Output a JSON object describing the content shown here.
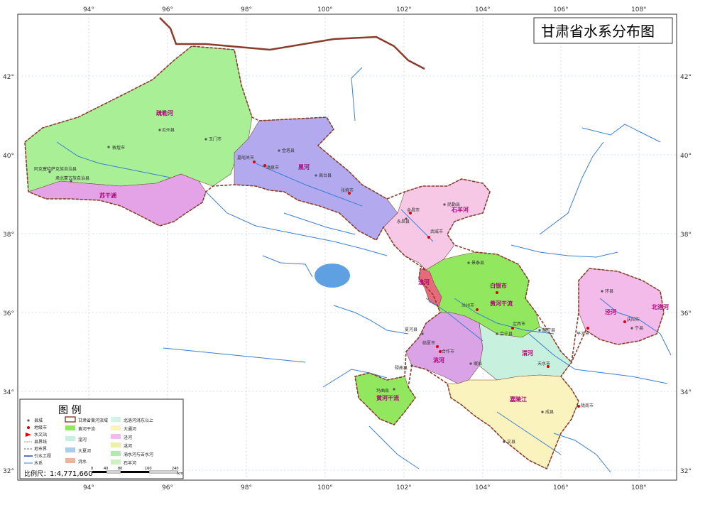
{
  "title": "甘肃省水系分布图",
  "axes": {
    "longitudes": [
      "94°",
      "96°",
      "98°",
      "100°",
      "102°",
      "104°",
      "106°",
      "108°"
    ],
    "latitudes": [
      "42°",
      "40°",
      "38°",
      "36°",
      "34°",
      "32°"
    ]
  },
  "basins": [
    "疏勒河",
    "黑河",
    "石羊河",
    "苏干湖",
    "黄河干流",
    "白银市",
    "渭河",
    "泾河",
    "嘉陵江",
    "洮河",
    "湟河",
    "北洛河",
    "黄河干流"
  ],
  "cities": [
    "嘉峪关市",
    "酒泉市",
    "张掖市",
    "金昌市",
    "武威市",
    "兰州市",
    "白银市",
    "定西市",
    "天水市",
    "平凉市",
    "庆阳市",
    "陇南市",
    "临夏市",
    "合作市",
    "敦煌市",
    "玉门市",
    "瓜州县",
    "金塔县",
    "高台县",
    "民勤县",
    "永昌县",
    "景泰县",
    "会宁县",
    "静宁县",
    "环县",
    "宁县",
    "成县",
    "文县",
    "岷县",
    "夏河县",
    "碌曲县",
    "玛曲县",
    "阿克塞哈萨克族自治县",
    "肃北蒙古族自治县"
  ],
  "legend": {
    "title": "图 例",
    "items_left": [
      "县城",
      "地级市",
      "水文站",
      "县界线",
      "地市界",
      "引水工程",
      "水系"
    ],
    "items_mid": [
      "甘肃省黄河流域",
      "黄河干流",
      "湟河",
      "大夏河",
      "洮水"
    ],
    "items_right": [
      "北洛河洮东以上",
      "大通河",
      "泾河",
      "洮河",
      "渝水河与苦水河",
      "石羊河"
    ],
    "scale_label": "比例尺：",
    "scale_value": "1:4,771,660",
    "scale_ticks": [
      "0",
      "40",
      "80",
      "160",
      "240"
    ],
    "scale_unit": "km"
  },
  "colors": {
    "shule": "#a8ef96",
    "hei": "#b2a9ef",
    "shiyang": "#f7c8e6",
    "sugan": "#e3a3e6",
    "huanghe": "#91e85f",
    "wei": "#c7f0de",
    "jing": "#f2bbe9",
    "jialing": "#fbf3bd",
    "tao": "#d9a3e6",
    "huang": "#e46a7c",
    "beiluo": "#d4d3f5",
    "sea": "#ffffff",
    "lake": "#5fa0e3",
    "river": "#3c7fd1",
    "border": "#8a3b2a"
  }
}
